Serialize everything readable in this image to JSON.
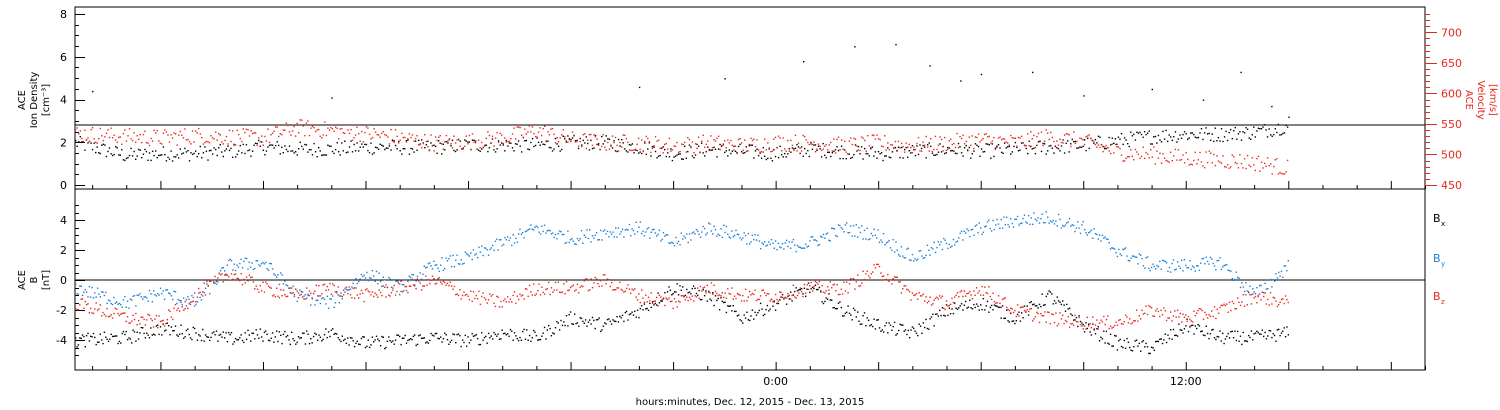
{
  "x_axis": {
    "label": "hours:minutes, Dec. 12, 2015 - Dec. 13, 2015",
    "tick_labels": [
      "0:00",
      "12:00"
    ]
  },
  "chart_data": [
    {
      "type": "scatter",
      "panel": "top",
      "ylabel": [
        "ACE",
        "Ion Density",
        "[cm⁻³]"
      ],
      "ylim": [
        0,
        8
      ],
      "yticks": [
        "0",
        "2",
        "4",
        "6",
        "8"
      ],
      "y2label": [
        "ACE",
        "Velocity",
        "[km/s]"
      ],
      "y2lim": [
        450,
        730
      ],
      "y2ticks": [
        "450",
        "500",
        "550",
        "600",
        "650",
        "700"
      ],
      "x_unit": "hours from 2015-12-12 00:00",
      "xlim": [
        -20.5,
        19.0
      ],
      "series": [
        {
          "role": "density",
          "axis": "left",
          "color": "#000000",
          "x": [
            -20.5,
            -19,
            -18,
            -17,
            -16,
            -15,
            -14,
            -13,
            -12,
            -11,
            -10,
            -9,
            -8,
            -7,
            -6,
            -5,
            -4,
            -3,
            -2,
            -1,
            0,
            1,
            2,
            3,
            4,
            5,
            6,
            7,
            8,
            9,
            10,
            11,
            12,
            13,
            14,
            15
          ],
          "values": [
            2.0,
            1.4,
            1.5,
            1.5,
            1.6,
            1.8,
            1.7,
            1.7,
            1.8,
            1.8,
            1.8,
            1.9,
            1.9,
            1.9,
            2.0,
            2.0,
            1.8,
            1.5,
            1.7,
            1.6,
            1.5,
            1.7,
            1.6,
            1.5,
            1.6,
            1.7,
            1.6,
            1.7,
            1.8,
            1.9,
            2.1,
            2.3,
            2.4,
            2.4,
            2.5,
            2.8
          ],
          "outliers_x": [
            -20.0,
            -13.0,
            -4.0,
            -1.5,
            0.8,
            2.3,
            3.5,
            4.5,
            5.4,
            6.0,
            7.5,
            9.0,
            11.0,
            12.5,
            13.6,
            14.5,
            15.0
          ],
          "outliers_y": [
            4.4,
            4.1,
            4.6,
            5.0,
            5.8,
            6.5,
            6.6,
            5.6,
            4.9,
            5.2,
            5.3,
            4.2,
            4.5,
            4.0,
            5.3,
            3.7,
            3.2
          ]
        },
        {
          "role": "velocity",
          "axis": "right",
          "color": "#e8271d",
          "x": [
            -20.5,
            -19,
            -18,
            -17,
            -16,
            -15,
            -14,
            -13,
            -12,
            -11,
            -10,
            -9,
            -8,
            -7,
            -6,
            -5,
            -4,
            -3,
            -2,
            -1,
            0,
            1,
            2,
            3,
            4,
            5,
            6,
            7,
            8,
            9,
            10,
            11,
            12,
            13,
            14,
            15
          ],
          "values": [
            535,
            530,
            528,
            532,
            530,
            528,
            545,
            540,
            535,
            528,
            520,
            522,
            528,
            540,
            525,
            520,
            520,
            515,
            520,
            515,
            520,
            520,
            515,
            520,
            515,
            520,
            525,
            520,
            530,
            522,
            505,
            500,
            495,
            492,
            488,
            478
          ]
        }
      ]
    },
    {
      "type": "scatter",
      "panel": "bottom",
      "ylabel": [
        "ACE",
        "B",
        "[nT]"
      ],
      "ylim": [
        -6,
        6
      ],
      "yticks": [
        "-4",
        "-2",
        "0",
        "2",
        "4"
      ],
      "x_unit": "hours from 2015-12-12 00:00",
      "xlim": [
        -20.5,
        19.0
      ],
      "series": [
        {
          "name": "Bx",
          "color": "#000000",
          "x": [
            -20.5,
            -19,
            -18,
            -17,
            -16,
            -15,
            -14,
            -13,
            -12,
            -11,
            -10,
            -9,
            -8,
            -7,
            -6,
            -5,
            -4,
            -3,
            -2,
            -1,
            0,
            1,
            2,
            3,
            4,
            5,
            6,
            7,
            8,
            9,
            10,
            11,
            12,
            13,
            14,
            15
          ],
          "values": [
            -4.0,
            -3.8,
            -3.2,
            -3.5,
            -3.9,
            -3.6,
            -3.9,
            -3.5,
            -4.2,
            -4.0,
            -3.8,
            -4.0,
            -3.5,
            -3.8,
            -2.5,
            -3.0,
            -2.0,
            -0.5,
            -1.0,
            -2.5,
            -1.5,
            -0.5,
            -2.0,
            -3.0,
            -3.5,
            -2.0,
            -1.5,
            -2.5,
            -1.0,
            -3.0,
            -4.2,
            -4.5,
            -3.0,
            -3.8,
            -3.8,
            -3.5
          ]
        },
        {
          "name": "By",
          "color": "#1a7fd4",
          "x": [
            -20.5,
            -19,
            -18,
            -17,
            -16,
            -15,
            -14,
            -13,
            -12,
            -11,
            -10,
            -9,
            -8,
            -7,
            -6,
            -5,
            -4,
            -3,
            -2,
            -1,
            0,
            1,
            2,
            3,
            4,
            5,
            6,
            7,
            8,
            9,
            10,
            11,
            12,
            13,
            14,
            15
          ],
          "values": [
            -0.5,
            -1.5,
            -0.8,
            -1.5,
            1.0,
            1.2,
            -1.0,
            -1.5,
            0.5,
            -0.5,
            1.0,
            1.5,
            2.5,
            3.5,
            2.8,
            3.2,
            3.5,
            2.5,
            3.5,
            3.0,
            2.2,
            2.5,
            3.5,
            3.0,
            1.5,
            2.5,
            3.5,
            4.0,
            4.2,
            3.5,
            2.0,
            1.0,
            1.0,
            1.2,
            -1.0,
            1.0
          ]
        },
        {
          "name": "Bz",
          "color": "#e8271d",
          "x": [
            -20.5,
            -19,
            -18,
            -17,
            -16,
            -15,
            -14,
            -13,
            -12,
            -11,
            -10,
            -9,
            -8,
            -7,
            -6,
            -5,
            -4,
            -3,
            -2,
            -1,
            0,
            1,
            2,
            3,
            4,
            5,
            6,
            7,
            8,
            9,
            10,
            11,
            12,
            13,
            14,
            15
          ],
          "values": [
            -1.5,
            -2.5,
            -2.8,
            -1.0,
            0.5,
            -0.5,
            -1.0,
            -0.5,
            -1.0,
            -0.5,
            0.0,
            -1.0,
            -1.5,
            -0.5,
            -0.5,
            0.0,
            -1.0,
            -1.5,
            -0.5,
            -1.0,
            -1.0,
            -0.5,
            -0.5,
            0.8,
            -1.0,
            -1.5,
            -0.5,
            -2.0,
            -2.5,
            -2.8,
            -2.8,
            -2.0,
            -2.5,
            -2.0,
            -1.0,
            -1.5
          ]
        }
      ],
      "legend": [
        {
          "label": "B",
          "sub": "x",
          "color": "#000000"
        },
        {
          "label": "B",
          "sub": "y",
          "color": "#1a7fd4"
        },
        {
          "label": "B",
          "sub": "z",
          "color": "#e8271d"
        }
      ]
    }
  ]
}
